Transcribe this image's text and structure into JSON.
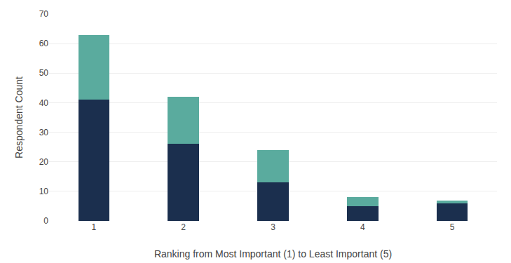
{
  "chart_data": {
    "type": "bar",
    "stacked": true,
    "xlabel": "Ranking from Most Important (1) to Least Important (5)",
    "ylabel": "Respondent Count",
    "categories": [
      1,
      2,
      3,
      4,
      5
    ],
    "series": [
      {
        "color": "#1b2f4e",
        "values": [
          41,
          26,
          13,
          5,
          6
        ]
      },
      {
        "color": "#5aab9e",
        "values": [
          22,
          16,
          11,
          3,
          1
        ]
      }
    ],
    "ylim": [
      0,
      70
    ],
    "yticks": [
      0,
      10,
      20,
      30,
      40,
      50,
      60,
      70
    ],
    "grid": true
  }
}
